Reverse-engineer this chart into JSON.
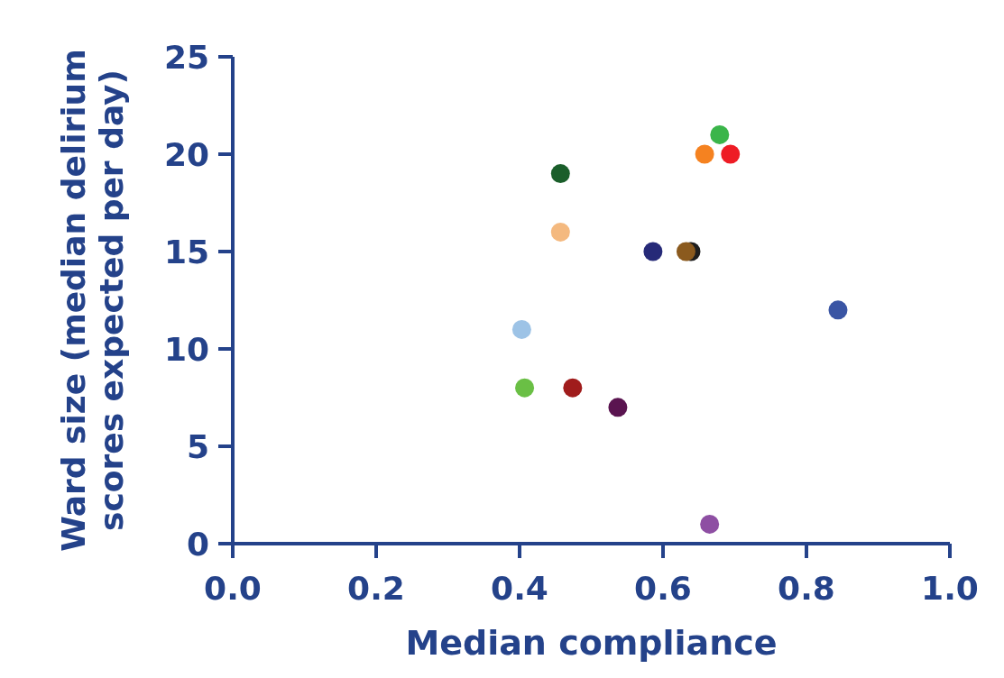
{
  "chart_data": {
    "type": "scatter",
    "xlabel": "Median compliance",
    "ylabel": "Ward size (median delirium scores expected per day)",
    "x": [
      0.403,
      0.407,
      0.457,
      0.457,
      0.474,
      0.537,
      0.586,
      0.632,
      0.639,
      0.658,
      0.679,
      0.694,
      0.844,
      0.665
    ],
    "values": [
      11,
      8,
      19,
      16,
      8,
      7,
      15,
      15,
      15,
      20,
      21,
      20,
      12,
      1
    ],
    "colors": [
      "#9dc3e6",
      "#6abf45",
      "#1a5e2a",
      "#f4b97f",
      "#a01c1c",
      "#5a1450",
      "#262a78",
      "#8b5a1e",
      "#1e1e1e",
      "#f58220",
      "#3ab54a",
      "#ee1c25",
      "#3a55a4",
      "#8e4fa3"
    ],
    "xlim": [
      0,
      1
    ],
    "xticks": [
      {
        "value": 0,
        "label": "0.0"
      },
      0.2,
      0.4,
      0.6,
      0.8,
      {
        "value": 1,
        "label": "1.0"
      }
    ],
    "ylim": [
      0,
      25
    ],
    "yticks": [
      0,
      5,
      10,
      15,
      20,
      25
    ],
    "grid": false,
    "marker": "circle"
  }
}
